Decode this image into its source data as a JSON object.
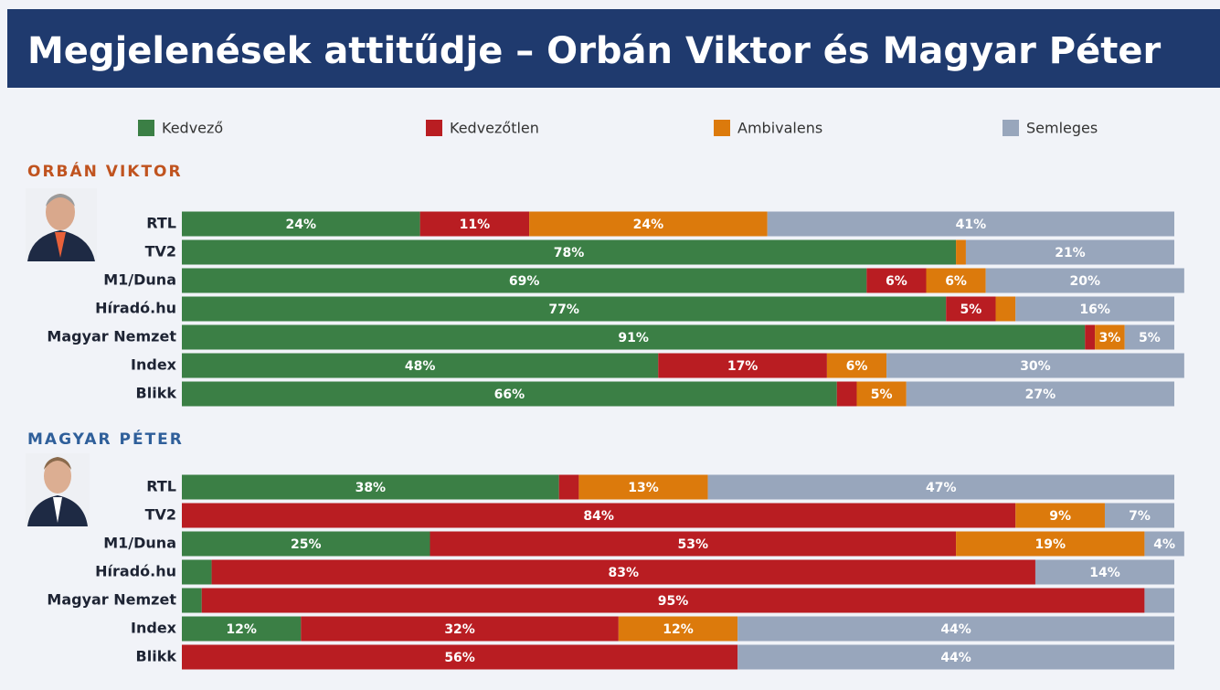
{
  "title": "Megjelenések attitűdje – Orbán Viktor és Magyar Péter",
  "chart_data": [
    {
      "type": "stacked-bar",
      "title": "ORBÁN VIKTOR",
      "categories": [
        "RTL",
        "TV2",
        "M1/Duna",
        "Híradó.hu",
        "Magyar Nemzet",
        "Index",
        "Blikk"
      ],
      "series": [
        {
          "name": "Kedvező",
          "color": "#3b7f45",
          "values": [
            24,
            78,
            69,
            77,
            91,
            48,
            66
          ],
          "value_labels": [
            "24%",
            "78%",
            "69%",
            "77%",
            "91%",
            "48%",
            "66%"
          ]
        },
        {
          "name": "Kedvezőtlen",
          "color": "#b91d22",
          "values": [
            11,
            0,
            6,
            5,
            1,
            17,
            2
          ],
          "value_labels": [
            "11%",
            null,
            "6%",
            "5%",
            null,
            "17%",
            null
          ]
        },
        {
          "name": "Ambivalens",
          "color": "#dc7a0c",
          "values": [
            24,
            1,
            6,
            2,
            3,
            6,
            5
          ],
          "value_labels": [
            "24%",
            null,
            "6%",
            null,
            "3%",
            "6%",
            "5%"
          ]
        },
        {
          "name": "Semleges",
          "color": "#98a6bc",
          "values": [
            41,
            21,
            20,
            16,
            5,
            30,
            27
          ],
          "value_labels": [
            "41%",
            "21%",
            "20%",
            "16%",
            "5%",
            "30%",
            "27%"
          ]
        }
      ]
    },
    {
      "type": "stacked-bar",
      "title": "MAGYAR PÉTER",
      "categories": [
        "RTL",
        "TV2",
        "M1/Duna",
        "Híradó.hu",
        "Magyar Nemzet",
        "Index",
        "Blikk"
      ],
      "series": [
        {
          "name": "Kedvező",
          "color": "#3b7f45",
          "values": [
            38,
            0,
            25,
            3,
            2,
            12,
            0
          ],
          "value_labels": [
            "38%",
            null,
            "25%",
            null,
            null,
            "12%",
            null
          ]
        },
        {
          "name": "Kedvezőtlen",
          "color": "#b91d22",
          "values": [
            2,
            84,
            53,
            83,
            95,
            32,
            56
          ],
          "value_labels": [
            null,
            "84%",
            "53%",
            "83%",
            "95%",
            "32%",
            "56%"
          ]
        },
        {
          "name": "Ambivalens",
          "color": "#dc7a0c",
          "values": [
            13,
            9,
            19,
            0,
            0,
            12,
            0
          ],
          "value_labels": [
            "13%",
            "9%",
            "19%",
            null,
            null,
            "12%",
            null
          ]
        },
        {
          "name": "Semleges",
          "color": "#98a6bc",
          "values": [
            47,
            7,
            4,
            14,
            3,
            44,
            44
          ],
          "value_labels": [
            "47%",
            "7%",
            "4%",
            "14%",
            null,
            "44%",
            "44%"
          ]
        }
      ]
    }
  ]
}
